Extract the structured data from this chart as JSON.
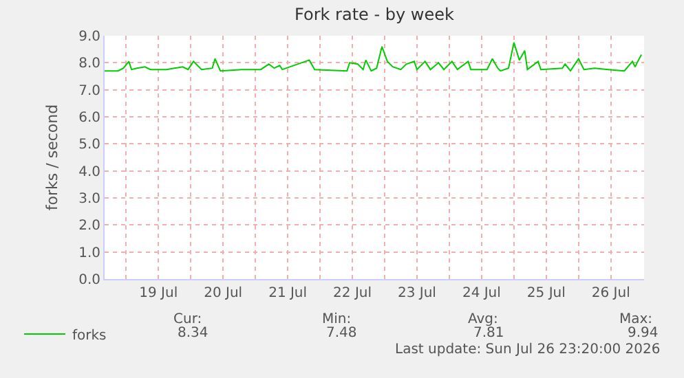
{
  "chart_data": {
    "type": "line",
    "title": "Fork rate - by week",
    "ylabel": "forks / second",
    "x": [
      "2026-07-18T16:00",
      "2026-07-18T21:00",
      "2026-07-18T23:00",
      "2026-07-19T01:00",
      "2026-07-19T02:00",
      "2026-07-19T04:00",
      "2026-07-19T07:00",
      "2026-07-19T09:00",
      "2026-07-19T15:00",
      "2026-07-19T21:00",
      "2026-07-19T23:00",
      "2026-07-20T01:00",
      "2026-07-20T04:00",
      "2026-07-20T08:00",
      "2026-07-20T09:00",
      "2026-07-20T11:00",
      "2026-07-20T19:00",
      "2026-07-21T02:00",
      "2026-07-21T05:00",
      "2026-07-21T07:00",
      "2026-07-21T09:00",
      "2026-07-21T10:00",
      "2026-07-21T20:00",
      "2026-07-21T22:00",
      "2026-07-22T10:00",
      "2026-07-22T11:00",
      "2026-07-22T14:00",
      "2026-07-22T16:00",
      "2026-07-22T17:00",
      "2026-07-22T19:00",
      "2026-07-22T21:00",
      "2026-07-22T23:00",
      "2026-07-23T01:00",
      "2026-07-23T03:00",
      "2026-07-23T06:00",
      "2026-07-23T08:00",
      "2026-07-23T11:00",
      "2026-07-23T12:00",
      "2026-07-23T15:00",
      "2026-07-23T17:00",
      "2026-07-23T20:00",
      "2026-07-23T22:00",
      "2026-07-24T01:00",
      "2026-07-24T03:00",
      "2026-07-24T07:00",
      "2026-07-24T08:00",
      "2026-07-24T14:00",
      "2026-07-24T16:00",
      "2026-07-24T18:00",
      "2026-07-24T19:00",
      "2026-07-24T22:00",
      "2026-07-25T00:00",
      "2026-07-25T02:00",
      "2026-07-25T04:00",
      "2026-07-25T05:00",
      "2026-07-25T09:00",
      "2026-07-25T10:00",
      "2026-07-25T18:00",
      "2026-07-25T19:00",
      "2026-07-25T21:00",
      "2026-07-26T00:00",
      "2026-07-26T02:00",
      "2026-07-26T06:00",
      "2026-07-26T11:00",
      "2026-07-26T17:00",
      "2026-07-26T20:00",
      "2026-07-26T21:00",
      "2026-07-26T22:00",
      "2026-07-26T23:20"
    ],
    "series": [
      {
        "name": "forks",
        "color": "#00cc00",
        "values": [
          7.7,
          7.7,
          7.8,
          8.05,
          7.75,
          7.8,
          7.85,
          7.75,
          7.75,
          7.85,
          7.75,
          8.05,
          7.75,
          7.8,
          8.15,
          7.7,
          7.75,
          7.75,
          7.95,
          7.8,
          7.9,
          7.75,
          8.1,
          7.75,
          7.7,
          8.0,
          7.95,
          7.75,
          8.1,
          7.7,
          7.8,
          8.6,
          8.05,
          7.85,
          7.75,
          7.95,
          8.05,
          7.75,
          8.05,
          7.75,
          8.0,
          7.75,
          8.05,
          7.75,
          8.05,
          7.75,
          7.75,
          8.15,
          7.8,
          7.7,
          7.8,
          8.75,
          8.1,
          8.45,
          7.75,
          8.05,
          7.75,
          7.8,
          7.95,
          7.7,
          8.15,
          7.75,
          7.8,
          7.75,
          7.7,
          8.05,
          7.85,
          8.05,
          8.3
        ]
      }
    ],
    "xlim": [
      "2026-07-18T16:00",
      "2026-07-27T00:20"
    ],
    "xticks": [
      {
        "value": "2026-07-19T00:00",
        "label": null
      },
      {
        "value": "2026-07-19T12:00",
        "label": "19 Jul"
      },
      {
        "value": "2026-07-20T00:00",
        "label": null
      },
      {
        "value": "2026-07-20T12:00",
        "label": "20 Jul"
      },
      {
        "value": "2026-07-21T00:00",
        "label": null
      },
      {
        "value": "2026-07-21T12:00",
        "label": "21 Jul"
      },
      {
        "value": "2026-07-22T00:00",
        "label": null
      },
      {
        "value": "2026-07-22T12:00",
        "label": "22 Jul"
      },
      {
        "value": "2026-07-23T00:00",
        "label": null
      },
      {
        "value": "2026-07-23T12:00",
        "label": "23 Jul"
      },
      {
        "value": "2026-07-24T00:00",
        "label": null
      },
      {
        "value": "2026-07-24T12:00",
        "label": "24 Jul"
      },
      {
        "value": "2026-07-25T00:00",
        "label": null
      },
      {
        "value": "2026-07-25T12:00",
        "label": "25 Jul"
      },
      {
        "value": "2026-07-26T00:00",
        "label": null
      },
      {
        "value": "2026-07-26T12:00",
        "label": "26 Jul"
      },
      {
        "value": "2026-07-27T00:00",
        "label": null
      }
    ],
    "ylim": [
      0,
      9
    ],
    "yticks": [
      {
        "value": 0,
        "label": "0.0"
      },
      {
        "value": 1,
        "label": "1.0"
      },
      {
        "value": 2,
        "label": "2.0"
      },
      {
        "value": 3,
        "label": "3.0"
      },
      {
        "value": 4,
        "label": "4.0"
      },
      {
        "value": 5,
        "label": "5.0"
      },
      {
        "value": 6,
        "label": "6.0"
      },
      {
        "value": 7,
        "label": "7.0"
      },
      {
        "value": 8,
        "label": "8.0"
      },
      {
        "value": 9,
        "label": "9.0"
      }
    ],
    "grid": true,
    "legend": "bottom left",
    "marker": "none",
    "line_style": "solid",
    "annotations": [
      "Cur:",
      "8.34",
      "Min:",
      "7.48",
      "Avg:",
      "7.81",
      "Max:",
      "9.94",
      "Last update: Sun Jul 26 23:20:00 2026"
    ]
  }
}
